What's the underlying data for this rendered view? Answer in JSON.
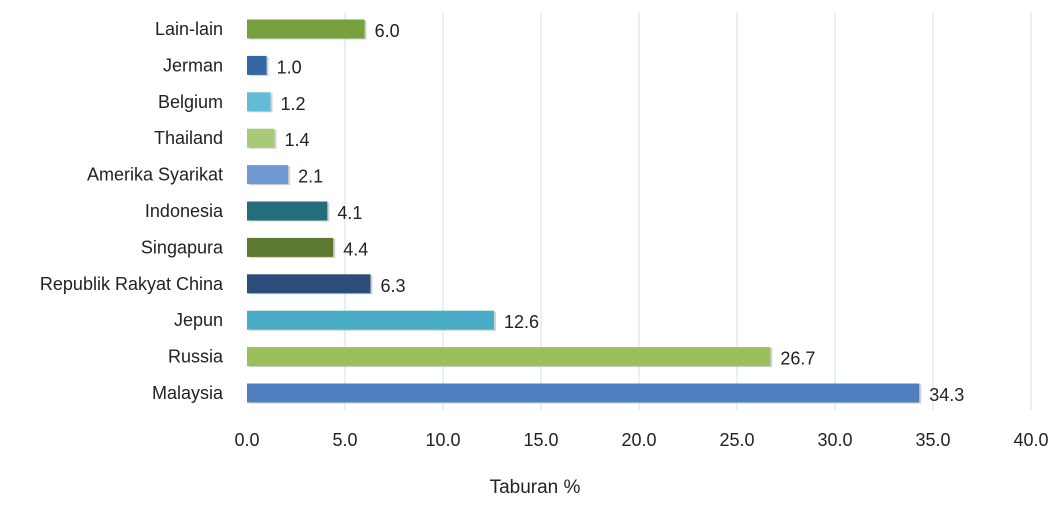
{
  "chart_data": {
    "type": "bar",
    "orientation": "horizontal",
    "categories": [
      "Lain-lain",
      "Jerman",
      "Belgium",
      "Thailand",
      "Amerika Syarikat",
      "Indonesia",
      "Singapura",
      "Republik Rakyat China",
      "Jepun",
      "Russia",
      "Malaysia"
    ],
    "values": [
      6.0,
      1.0,
      1.2,
      1.4,
      2.1,
      4.1,
      4.4,
      6.3,
      12.6,
      26.7,
      34.3
    ],
    "value_labels": [
      "6.0",
      "1.0",
      "1.2",
      "1.4",
      "2.1",
      "4.1",
      "4.4",
      "6.3",
      "12.6",
      "26.7",
      "34.3"
    ],
    "colors": [
      "#77a03f",
      "#3567a8",
      "#63bcd6",
      "#a9c97a",
      "#6f99d0",
      "#236e7a",
      "#5d782f",
      "#2c4d79",
      "#4aadc8",
      "#9bbf5a",
      "#4f7fbe"
    ],
    "xlabel": "Taburan %",
    "ylabel": "",
    "title": "",
    "xlim": [
      0,
      40
    ],
    "xticks": [
      "0.0",
      "5.0",
      "10.0",
      "15.0",
      "20.0",
      "25.0",
      "30.0",
      "35.0",
      "40.0"
    ],
    "grid": true,
    "legend": "none"
  }
}
